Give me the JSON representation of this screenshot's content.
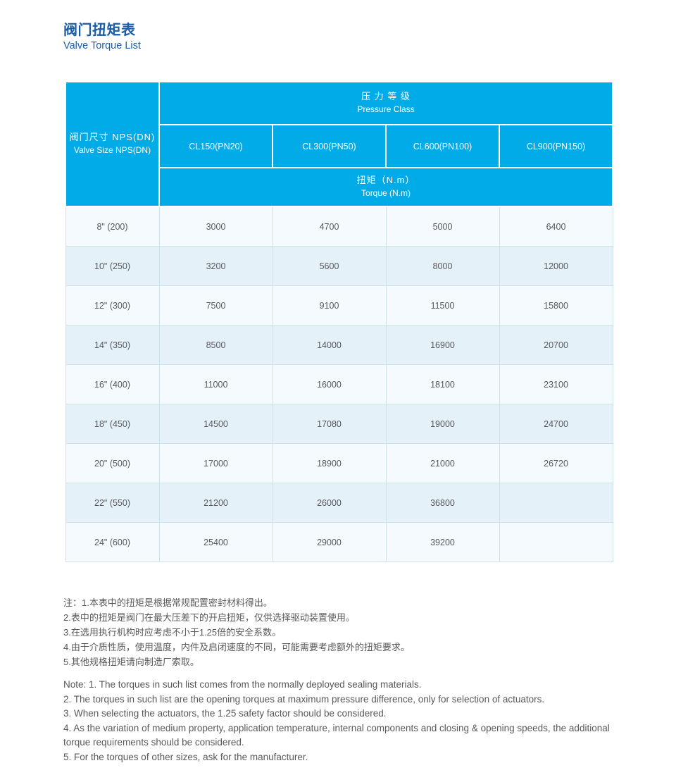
{
  "header": {
    "title_zh": "阀门扭矩表",
    "title_en": "Valve Torque List"
  },
  "table": {
    "size_header_zh": "阀门尺寸 NPS(DN)",
    "size_header_en": "Valve Size NPS(DN)",
    "pressure_class_zh": "压 力 等 级",
    "pressure_class_en": "Pressure Class",
    "torque_zh": "扭矩（N.m）",
    "torque_en": "Torque (N.m)",
    "pressure_classes": [
      "CL150(PN20)",
      "CL300(PN50)",
      "CL600(PN100)",
      "CL900(PN150)"
    ],
    "rows": [
      {
        "size": "8\" (200)",
        "values": [
          "3000",
          "4700",
          "5000",
          "6400"
        ]
      },
      {
        "size": "10\" (250)",
        "values": [
          "3200",
          "5600",
          "8000",
          "12000"
        ]
      },
      {
        "size": "12\" (300)",
        "values": [
          "7500",
          "9100",
          "11500",
          "15800"
        ]
      },
      {
        "size": "14\" (350)",
        "values": [
          "8500",
          "14000",
          "16900",
          "20700"
        ]
      },
      {
        "size": "16\" (400)",
        "values": [
          "11000",
          "16000",
          "18100",
          "23100"
        ]
      },
      {
        "size": "18\" (450)",
        "values": [
          "14500",
          "17080",
          "19000",
          "24700"
        ]
      },
      {
        "size": "20\" (500)",
        "values": [
          "17000",
          "18900",
          "21000",
          "26720"
        ]
      },
      {
        "size": "22\" (550)",
        "values": [
          "21200",
          "26000",
          "36800",
          ""
        ]
      },
      {
        "size": "24\" (600)",
        "values": [
          "25400",
          "29000",
          "39200",
          ""
        ]
      }
    ]
  },
  "notes_zh": [
    "注：1.本表中的扭矩是根据常规配置密封材料得出。",
    "2.表中的扭矩是阀门在最大压差下的开启扭矩，仅供选择驱动装置使用。",
    "3.在选用执行机构时应考虑不小于1.25倍的安全系数。",
    "4.由于介质性质，使用温度，内件及启闭速度的不同，可能需要考虑额外的扭矩要求。",
    "5.其他规格扭矩请向制造厂索取。"
  ],
  "notes_en": [
    "Note: 1. The torques in such list comes from the normally deployed sealing materials.",
    "2. The torques in such list are the opening torques at maximum pressure difference, only for selection of actuators.",
    "3. When selecting the actuators, the 1.25 safety factor should be considered.",
    "4. As the variation of medium property, application temperature, internal components and closing & opening speeds, the additional torque requirements should be considered.",
    "5. For the torques of other sizes, ask for the manufacturer."
  ],
  "colors": {
    "header_bg": "#00ABE8",
    "title_blue": "#1A5CA8",
    "row_light": "#F4FAFD",
    "row_alt": "#E4F1F9",
    "border": "#CFE2EC",
    "text": "#58585B"
  }
}
